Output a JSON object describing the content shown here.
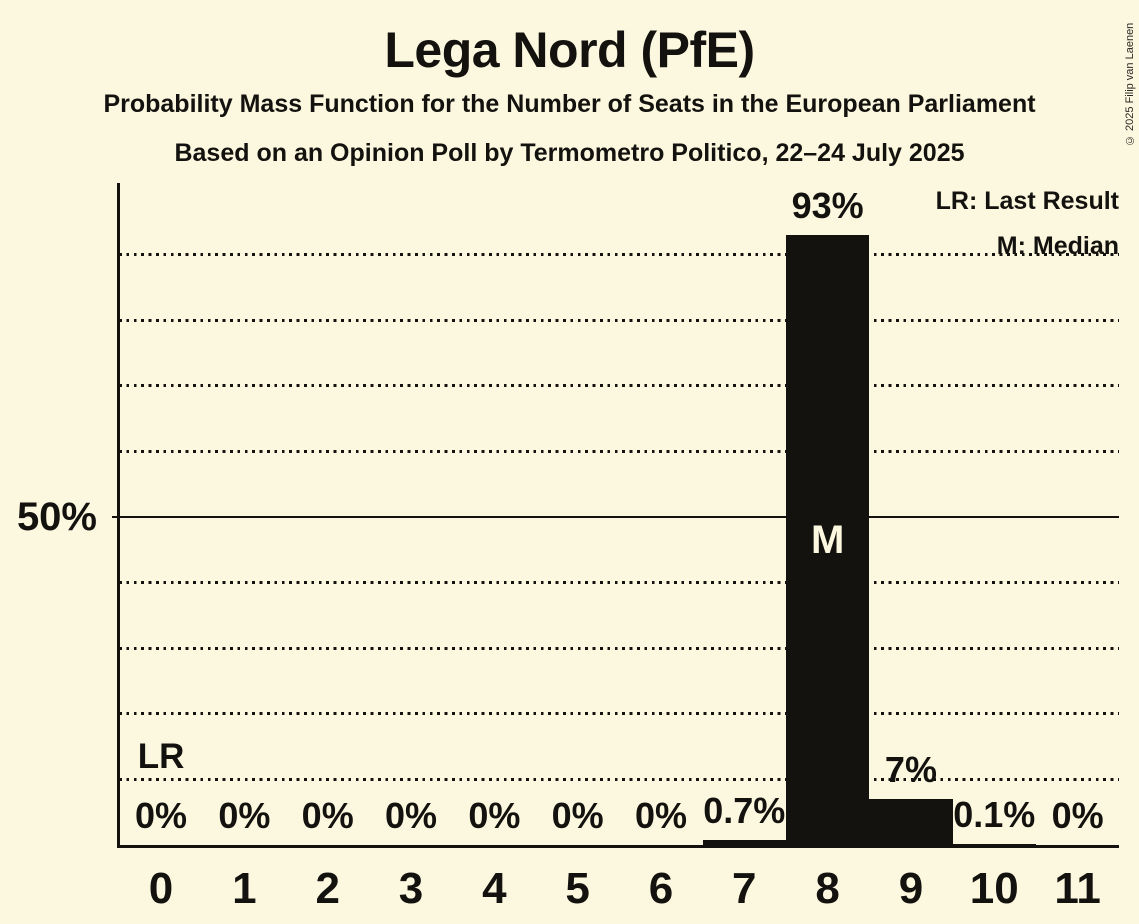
{
  "title": "Lega Nord (PfE)",
  "subtitle": "Probability Mass Function for the Number of Seats in the European Parliament",
  "source_line": "Based on an Opinion Poll by Termometro Politico, 22–24 July 2025",
  "copyright": "© 2025 Filip van Laenen",
  "legend": {
    "last_result": "LR: Last Result",
    "median": "M: Median"
  },
  "y_axis": {
    "tick_label": "50%",
    "tick_value": 50
  },
  "colors": {
    "background": "#FCF8E0",
    "bar": "#14120E",
    "text": "#14120E",
    "median_text": "#FCF8E0"
  },
  "chart_data": {
    "type": "bar",
    "categories": [
      "0",
      "1",
      "2",
      "3",
      "4",
      "5",
      "6",
      "7",
      "8",
      "9",
      "10",
      "11"
    ],
    "values": [
      0,
      0,
      0,
      0,
      0,
      0,
      0,
      0.7,
      93,
      7,
      0.1,
      0
    ],
    "bar_labels": [
      "0%",
      "0%",
      "0%",
      "0%",
      "0%",
      "0%",
      "0%",
      "0.7%",
      "93%",
      "7%",
      "0.1%",
      "0%"
    ],
    "title": "Lega Nord (PfE)",
    "ylim": [
      0,
      100
    ],
    "gridlines_pct": [
      10,
      20,
      30,
      40,
      50,
      60,
      70,
      80,
      90
    ],
    "solid_gridline_pct": 50,
    "grid_style": "dotted",
    "legend_position": "top-right",
    "markers": {
      "median": {
        "category": "8",
        "label": "M"
      },
      "last_result": {
        "category": "0",
        "label": "LR"
      }
    }
  }
}
